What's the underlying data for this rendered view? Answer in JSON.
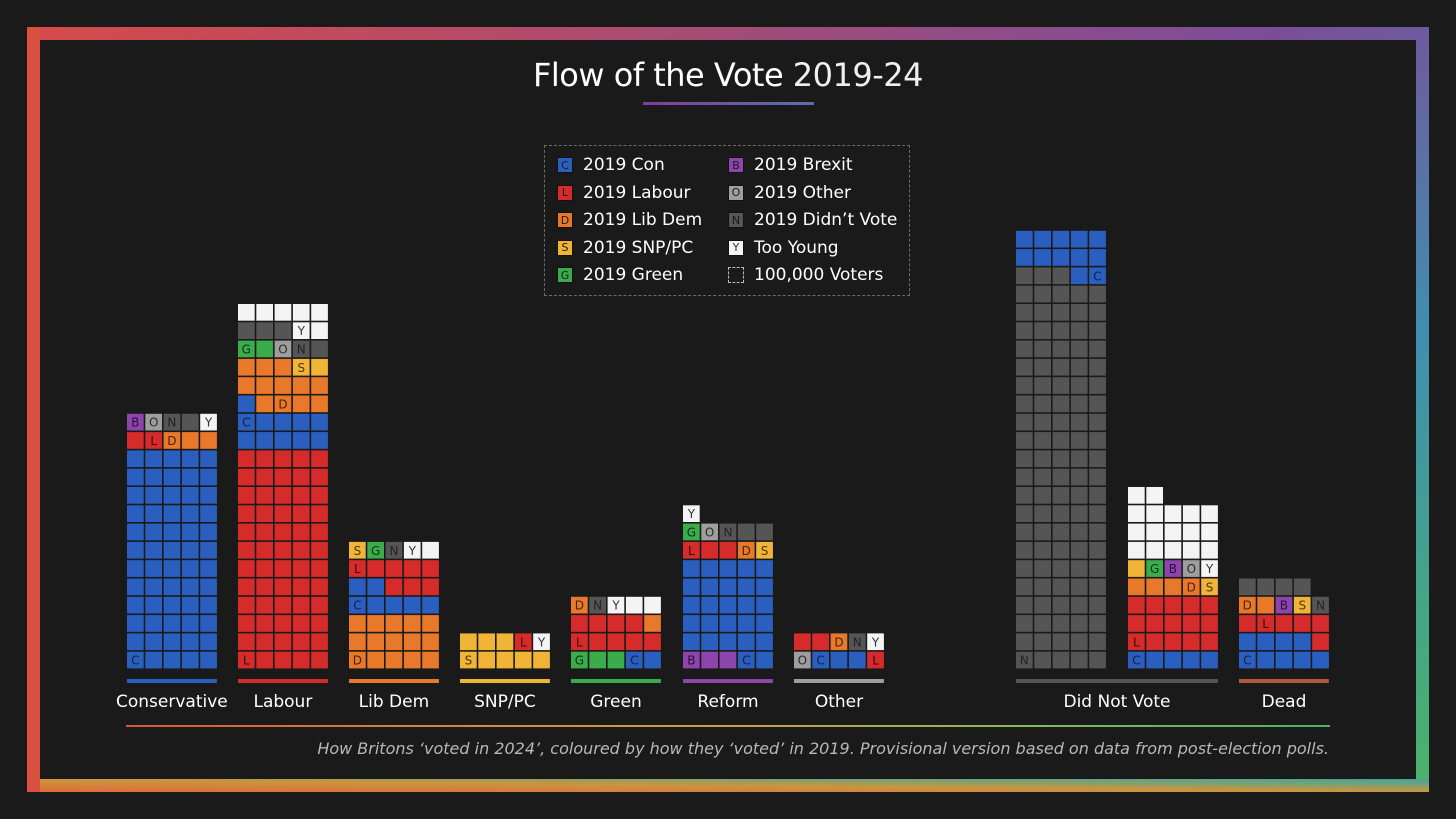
{
  "title": {
    "main": "Flow of the Vote",
    "years": "2019-24"
  },
  "legend": {
    "items": [
      {
        "key": "con",
        "letter": "C",
        "label": "2019 Con",
        "color": "#2b5fbf"
      },
      {
        "key": "lab",
        "letter": "L",
        "label": "2019 Labour",
        "color": "#d62b2b"
      },
      {
        "key": "ld",
        "letter": "D",
        "label": "2019 Lib Dem",
        "color": "#e8782a"
      },
      {
        "key": "snp",
        "letter": "S",
        "label": "2019 SNP/PC",
        "color": "#f0b437"
      },
      {
        "key": "grn",
        "letter": "G",
        "label": "2019 Green",
        "color": "#3aac4c"
      },
      {
        "key": "brx",
        "letter": "B",
        "label": "2019 Brexit",
        "color": "#8e44ad"
      },
      {
        "key": "oth",
        "letter": "O",
        "label": "2019 Other",
        "color": "#9e9e9e"
      },
      {
        "key": "dnv",
        "letter": "N",
        "label": "2019 Didn’t Vote",
        "color": "#555555"
      },
      {
        "key": "yng",
        "letter": "Y",
        "label": "Too Young",
        "color": "#f4f4f4"
      },
      {
        "key": "unit",
        "letter": "",
        "label": "100,000 Voters",
        "color": "#1a1a1a"
      }
    ]
  },
  "caption": "How Britons ‘voted in 2024’, coloured by how they ‘voted’ in 2019. Provisional version based on data from post-election polls.",
  "chart_data": {
    "type": "waffle",
    "title": "Flow of the Vote 2019-24",
    "unit": "100,000 Voters",
    "categories": [
      "Conservative",
      "Labour",
      "Lib Dem",
      "SNP/PC",
      "Green",
      "Reform",
      "Other",
      "Did Not Vote",
      "Dead"
    ],
    "category_colors": [
      "#2b5fbf",
      "#d62b2b",
      "#e8782a",
      "#f0b437",
      "#3aac4c",
      "#8e44ad",
      "#9e9e9e",
      "#555555",
      "#b0583e"
    ],
    "bars": [
      {
        "label": "Conservative",
        "blocks": [
          {
            "source": "con",
            "count": 60,
            "letter_at": 0
          },
          {
            "source": "lab",
            "count": 2,
            "letter_at": 1
          },
          {
            "source": "ld",
            "count": 3,
            "letter_at": 0
          },
          {
            "source": "brx",
            "count": 1,
            "letter_at": 0
          },
          {
            "source": "oth",
            "count": 1,
            "letter_at": 0
          },
          {
            "source": "dnv",
            "count": 2,
            "letter_at": 0
          },
          {
            "source": "yng",
            "count": 1,
            "letter_at": 0
          }
        ]
      },
      {
        "label": "Labour",
        "blocks": [
          {
            "source": "lab",
            "count": 60,
            "letter_at": 0
          },
          {
            "source": "con",
            "count": 11,
            "letter_at": 5
          },
          {
            "source": "ld",
            "count": 12,
            "letter_at": 1
          },
          {
            "source": "snp",
            "count": 2,
            "letter_at": 0
          },
          {
            "source": "grn",
            "count": 2,
            "letter_at": 0
          },
          {
            "source": "oth",
            "count": 1,
            "letter_at": 0
          },
          {
            "source": "dnv",
            "count": 5,
            "letter_at": 0
          },
          {
            "source": "yng",
            "count": 7,
            "letter_at": 0
          }
        ]
      },
      {
        "label": "Lib Dem",
        "blocks": [
          {
            "source": "ld",
            "count": 15,
            "letter_at": 0
          },
          {
            "source": "con",
            "count": 7,
            "letter_at": 0
          },
          {
            "source": "lab",
            "count": 8,
            "letter_at": 3
          },
          {
            "source": "snp",
            "count": 1,
            "letter_at": 0
          },
          {
            "source": "grn",
            "count": 1,
            "letter_at": 0
          },
          {
            "source": "dnv",
            "count": 1,
            "letter_at": 0
          },
          {
            "source": "yng",
            "count": 2,
            "letter_at": 0
          }
        ]
      },
      {
        "label": "SNP/PC",
        "blocks": [
          {
            "source": "snp",
            "count": 8,
            "letter_at": 0
          },
          {
            "source": "lab",
            "count": 1,
            "letter_at": 0
          },
          {
            "source": "yng",
            "count": 1,
            "letter_at": 0
          }
        ]
      },
      {
        "label": "Green",
        "blocks": [
          {
            "source": "grn",
            "count": 3,
            "letter_at": 0
          },
          {
            "source": "con",
            "count": 2,
            "letter_at": 0
          },
          {
            "source": "lab",
            "count": 9,
            "letter_at": 0
          },
          {
            "source": "ld",
            "count": 2,
            "letter_at": 1
          },
          {
            "source": "dnv",
            "count": 1,
            "letter_at": 0
          },
          {
            "source": "yng",
            "count": 3,
            "letter_at": 0
          }
        ]
      },
      {
        "label": "Reform",
        "blocks": [
          {
            "source": "brx",
            "count": 3,
            "letter_at": 0
          },
          {
            "source": "con",
            "count": 27,
            "letter_at": 0
          },
          {
            "source": "lab",
            "count": 3,
            "letter_at": 0
          },
          {
            "source": "ld",
            "count": 1,
            "letter_at": 0
          },
          {
            "source": "snp",
            "count": 1,
            "letter_at": 0
          },
          {
            "source": "grn",
            "count": 1,
            "letter_at": 0
          },
          {
            "source": "oth",
            "count": 1,
            "letter_at": 0
          },
          {
            "source": "dnv",
            "count": 3,
            "letter_at": 0
          },
          {
            "source": "yng",
            "count": 1,
            "letter_at": 0
          }
        ]
      },
      {
        "label": "Other",
        "blocks": [
          {
            "source": "oth",
            "count": 1,
            "letter_at": 0
          },
          {
            "source": "con",
            "count": 3,
            "letter_at": 0
          },
          {
            "source": "lab",
            "count": 3,
            "letter_at": 0
          },
          {
            "source": "ld",
            "count": 1,
            "letter_at": 0
          },
          {
            "source": "dnv",
            "count": 1,
            "letter_at": 0
          },
          {
            "source": "yng",
            "count": 1,
            "letter_at": 0
          }
        ]
      },
      {
        "label": "Did Not Vote",
        "sub_bars": [
          {
            "blocks": [
              {
                "source": "dnv",
                "count": 108,
                "letter_at": 0
              },
              {
                "source": "con",
                "count": 12,
                "letter_at": 1
              }
            ]
          },
          {
            "blocks": [
              {
                "source": "con",
                "count": 5,
                "letter_at": 0
              },
              {
                "source": "lab",
                "count": 15,
                "letter_at": 0
              },
              {
                "source": "ld",
                "count": 4,
                "letter_at": 3
              },
              {
                "source": "snp",
                "count": 2,
                "letter_at": 0
              },
              {
                "source": "grn",
                "count": 1,
                "letter_at": 0
              },
              {
                "source": "brx",
                "count": 1,
                "letter_at": 0
              },
              {
                "source": "oth",
                "count": 1,
                "letter_at": 0
              },
              {
                "source": "yng",
                "count": 18,
                "letter_at": 0
              }
            ]
          }
        ]
      },
      {
        "label": "Dead",
        "blocks": [
          {
            "source": "con",
            "count": 9,
            "letter_at": 0
          },
          {
            "source": "lab",
            "count": 6,
            "letter_at": 2
          },
          {
            "source": "ld",
            "count": 2,
            "letter_at": 0
          },
          {
            "source": "brx",
            "count": 1,
            "letter_at": 0
          },
          {
            "source": "snp",
            "count": 1,
            "letter_at": 0
          },
          {
            "source": "dnv",
            "count": 5,
            "letter_at": 0
          }
        ]
      }
    ]
  }
}
